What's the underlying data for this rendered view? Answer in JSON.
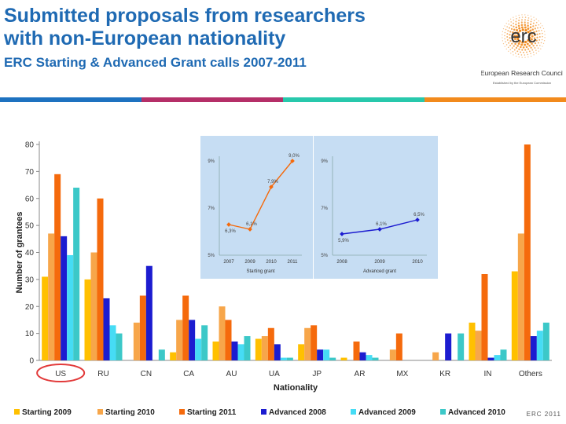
{
  "header": {
    "title_line1": "Submitted proposals from researchers",
    "title_line2": "with non-European nationality",
    "subtitle": "ERC Starting & Advanced Grant calls 2007-2011"
  },
  "logo": {
    "mark": "erc",
    "name": "European Research Council",
    "tagline": "Established by the European Commission"
  },
  "colors": {
    "title": "#1f6ab3",
    "stripes": [
      "#1e72c0",
      "#b52f68",
      "#28c8ac",
      "#f28a1c"
    ],
    "inset_bg": "#c6ddf3",
    "highlight_circle": "#e23a3a"
  },
  "footer": "ERC 2011",
  "chart_data": [
    {
      "type": "bar",
      "title": "",
      "xlabel": "Nationality",
      "ylabel": "Number of grantees",
      "ylim": [
        0,
        80
      ],
      "yticks": [
        0,
        10,
        20,
        30,
        40,
        50,
        60,
        70,
        80
      ],
      "categories": [
        "US",
        "RU",
        "CN",
        "CA",
        "AU",
        "UA",
        "JP",
        "AR",
        "MX",
        "KR",
        "IN",
        "Others"
      ],
      "highlighted_category": "US",
      "legend_position": "bottom",
      "series": [
        {
          "name": "Starting 2009",
          "color": "#ffc000",
          "values": [
            31,
            30,
            0,
            3,
            7,
            8,
            6,
            1,
            0,
            0,
            14,
            33
          ]
        },
        {
          "name": "Starting 2010",
          "color": "#f7a64a",
          "values": [
            47,
            40,
            14,
            15,
            20,
            9,
            12,
            0,
            4,
            3,
            11,
            47
          ]
        },
        {
          "name": "Starting 2011",
          "color": "#f56a0c",
          "values": [
            69,
            60,
            24,
            24,
            15,
            12,
            13,
            7,
            10,
            0,
            32,
            80
          ]
        },
        {
          "name": "Advanced 2008",
          "color": "#1c1cd0",
          "values": [
            46,
            23,
            35,
            15,
            7,
            6,
            4,
            3,
            0,
            10,
            1,
            9
          ]
        },
        {
          "name": "Advanced 2009",
          "color": "#46dcf5",
          "values": [
            39,
            13,
            0,
            8,
            6,
            1,
            4,
            2,
            0,
            0,
            2,
            11
          ]
        },
        {
          "name": "Advanced 2010",
          "color": "#3cc8c8",
          "values": [
            64,
            10,
            4,
            13,
            9,
            1,
            1,
            1,
            0,
            10,
            4,
            14
          ]
        }
      ]
    },
    {
      "type": "line",
      "title": "",
      "xlabel": "Starting grant",
      "categories": [
        "2007",
        "2009",
        "2010",
        "2011"
      ],
      "yticks_labels": [
        "5%",
        "7%",
        "9%"
      ],
      "ylim": [
        5,
        9
      ],
      "color": "#f56a0c",
      "values": [
        6.3,
        6.1,
        7.9,
        9.0
      ],
      "value_labels": [
        "6,3%",
        "6,1%",
        "7,9%",
        "9,0%"
      ]
    },
    {
      "type": "line",
      "title": "",
      "xlabel": "Advanced grant",
      "categories": [
        "2008",
        "2009",
        "2010"
      ],
      "yticks_labels": [
        "5%",
        "7%",
        "9%"
      ],
      "ylim": [
        5,
        9
      ],
      "color": "#1c1cd0",
      "values": [
        5.9,
        6.1,
        6.5
      ],
      "value_labels": [
        "5,9%",
        "6,1%",
        "6,5%"
      ]
    }
  ]
}
